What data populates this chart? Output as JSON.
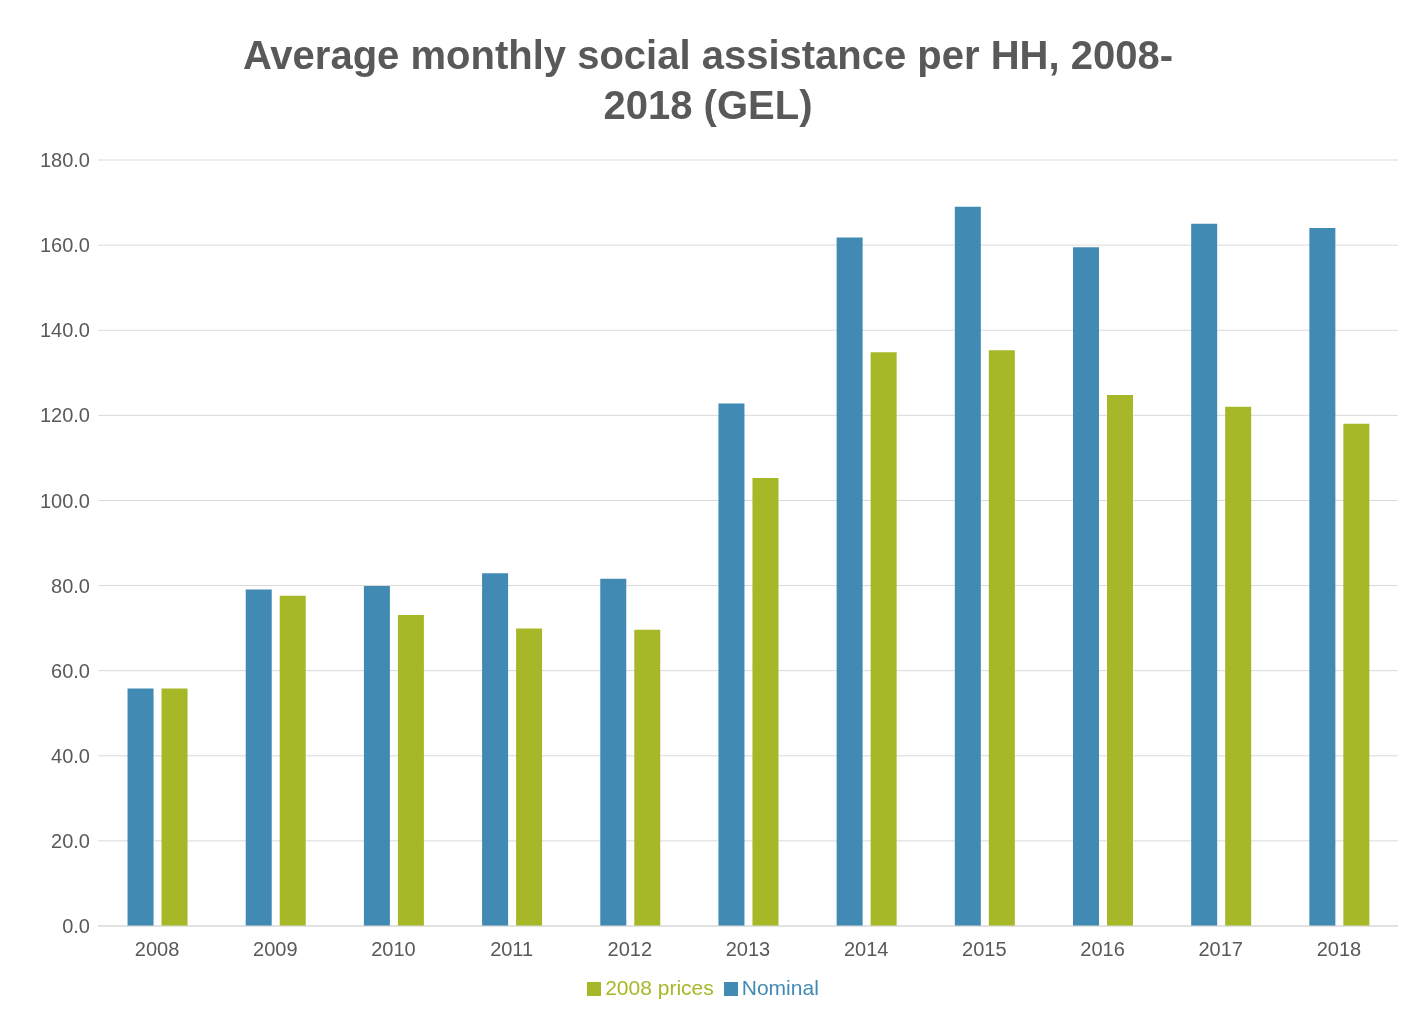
{
  "chart_data": {
    "type": "bar",
    "title": "Average monthly social assistance per HH, 2008-2018 (GEL)",
    "categories": [
      "2008",
      "2009",
      "2010",
      "2011",
      "2012",
      "2013",
      "2014",
      "2015",
      "2016",
      "2017",
      "2018"
    ],
    "series": [
      {
        "name": "Nominal",
        "color": "#418ab3",
        "values": [
          55.8,
          79.1,
          79.9,
          82.9,
          81.6,
          122.8,
          161.8,
          169,
          159.5,
          165,
          164
        ]
      },
      {
        "name": "2008 prices",
        "color": "#a6b727",
        "values": [
          55.8,
          77.6,
          73.1,
          69.9,
          69.6,
          105.3,
          134.8,
          135.3,
          124.8,
          122,
          118
        ]
      }
    ],
    "ylim": [
      0,
      180
    ],
    "yticks": [
      {
        "value": 0,
        "label": "0.0"
      },
      {
        "value": 20,
        "label": "20.0"
      },
      {
        "value": 40,
        "label": "40.0"
      },
      {
        "value": 60,
        "label": "60.0"
      },
      {
        "value": 80,
        "label": "80.0"
      },
      {
        "value": 100,
        "label": "100.0"
      },
      {
        "value": 120,
        "label": "120.0"
      },
      {
        "value": 140,
        "label": "140.0"
      },
      {
        "value": 160,
        "label": "160.0"
      },
      {
        "value": 180,
        "label": "180.0"
      }
    ],
    "grid": "y",
    "legend": "bottom"
  }
}
